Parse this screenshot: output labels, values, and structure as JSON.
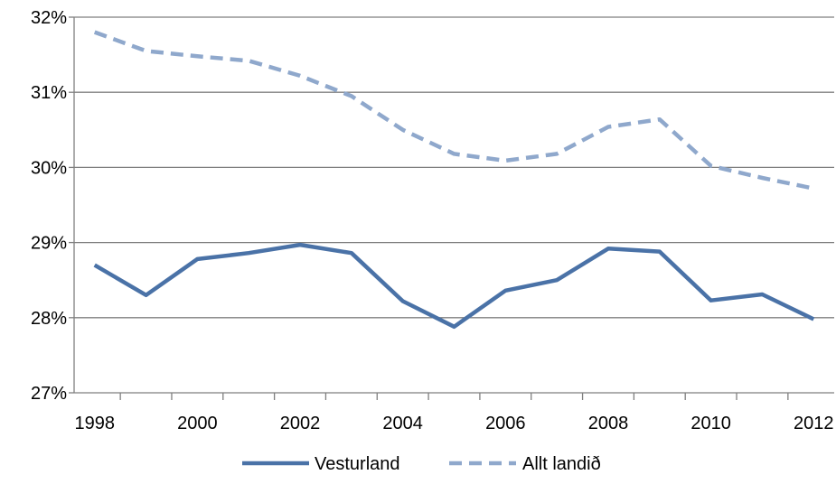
{
  "chart_data": {
    "type": "line",
    "x": [
      1998,
      1999,
      2000,
      2001,
      2002,
      2003,
      2004,
      2005,
      2006,
      2007,
      2008,
      2009,
      2010,
      2011,
      2012
    ],
    "x_tick_labels": [
      "1998",
      "2000",
      "2002",
      "2004",
      "2006",
      "2008",
      "2010",
      "2012"
    ],
    "y_tick_labels": [
      "27%",
      "28%",
      "29%",
      "30%",
      "31%",
      "32%"
    ],
    "ylim": [
      27,
      32
    ],
    "grid": true,
    "legend_position": "bottom",
    "series": [
      {
        "name": "Vesturland",
        "color": "#4a72a7",
        "style": "solid",
        "values": [
          28.7,
          28.3,
          28.78,
          28.86,
          28.97,
          28.86,
          28.22,
          27.88,
          28.36,
          28.5,
          28.92,
          28.88,
          28.23,
          28.31,
          27.98
        ]
      },
      {
        "name": "Allt landið",
        "color": "#8fa8cc",
        "style": "dashed",
        "values": [
          31.8,
          31.55,
          31.48,
          31.42,
          31.22,
          30.95,
          30.5,
          30.18,
          30.09,
          30.18,
          30.54,
          30.64,
          30.02,
          29.86,
          29.72
        ]
      }
    ]
  }
}
